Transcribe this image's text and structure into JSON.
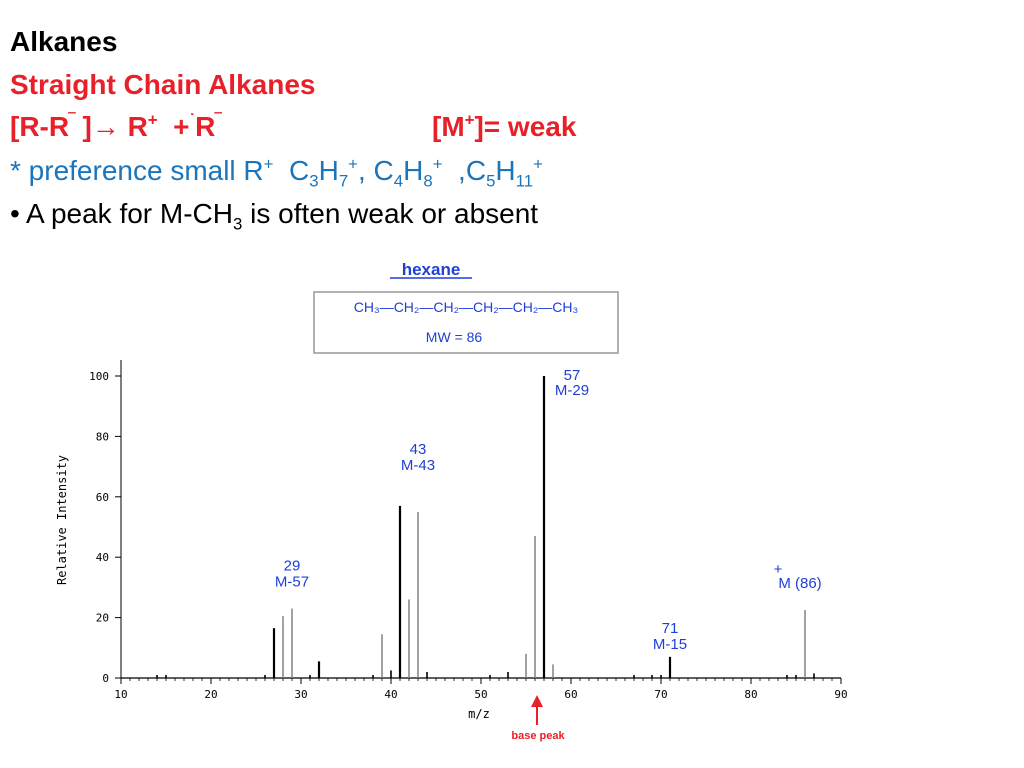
{
  "slide": {
    "title": "Alkanes",
    "subtitle": "Straight Chain Alkanes",
    "equation": {
      "part1": "[R-R",
      "sup1": "‾",
      "part2": " ]→ R",
      "sup2": "+",
      "part3": "  +",
      "sup3": "˙",
      "part4": "R",
      "sup4": "‾"
    },
    "molecular_ion": {
      "part1": "[M",
      "sup": "+",
      "part2": "]= weak"
    },
    "preference": {
      "prefix": "* preference small R",
      "sup_r": "+",
      "c3": "  C",
      "c3_sub": "3",
      "h7": "H",
      "h7_sub": "7",
      "c3_sup": "+",
      "c4": ", C",
      "c4_sub": "4",
      "h8": "H",
      "h8_sub": "8",
      "c4_sup": "+",
      "c5": "  ,C",
      "c5_sub": "5",
      "h11": "H",
      "h11_sub": "11",
      "c5_sup": "+"
    },
    "bullet": {
      "prefix": "• A peak for M-CH",
      "sub": "3",
      "suffix": " is often weak or absent"
    }
  },
  "spectrum_header": {
    "compound": "hexane",
    "formula": "CH₃—CH₂—CH₂—CH₂—CH₂—CH₃",
    "mw": "MW = 86"
  },
  "chart_data": {
    "type": "bar",
    "xlabel": "m/z",
    "ylabel": "Relative Intensity",
    "xlim": [
      10,
      90
    ],
    "ylim": [
      0,
      100
    ],
    "x_ticks": [
      10,
      20,
      30,
      40,
      50,
      60,
      70,
      80,
      90
    ],
    "y_ticks": [
      0,
      20,
      40,
      60,
      80,
      100
    ],
    "grid": false,
    "peaks": [
      {
        "mz": 14,
        "intensity": 1
      },
      {
        "mz": 15,
        "intensity": 1
      },
      {
        "mz": 26,
        "intensity": 1
      },
      {
        "mz": 27,
        "intensity": 16.5
      },
      {
        "mz": 28,
        "intensity": 20.5
      },
      {
        "mz": 29,
        "intensity": 23
      },
      {
        "mz": 31,
        "intensity": 1
      },
      {
        "mz": 32,
        "intensity": 5.5
      },
      {
        "mz": 38,
        "intensity": 1
      },
      {
        "mz": 39,
        "intensity": 14.5
      },
      {
        "mz": 40,
        "intensity": 2.5
      },
      {
        "mz": 41,
        "intensity": 57
      },
      {
        "mz": 42,
        "intensity": 26
      },
      {
        "mz": 43,
        "intensity": 55
      },
      {
        "mz": 44,
        "intensity": 2
      },
      {
        "mz": 51,
        "intensity": 1
      },
      {
        "mz": 53,
        "intensity": 2
      },
      {
        "mz": 55,
        "intensity": 8
      },
      {
        "mz": 56,
        "intensity": 47
      },
      {
        "mz": 57,
        "intensity": 100
      },
      {
        "mz": 58,
        "intensity": 4.5
      },
      {
        "mz": 67,
        "intensity": 1
      },
      {
        "mz": 69,
        "intensity": 1
      },
      {
        "mz": 70,
        "intensity": 1
      },
      {
        "mz": 71,
        "intensity": 7
      },
      {
        "mz": 84,
        "intensity": 1
      },
      {
        "mz": 85,
        "intensity": 1
      },
      {
        "mz": 86,
        "intensity": 22.5
      },
      {
        "mz": 87,
        "intensity": 1.5
      }
    ],
    "annotations": [
      {
        "mz": 29,
        "intensity": 23,
        "lines": [
          "29",
          "M-57"
        ]
      },
      {
        "mz": 43,
        "intensity": 55,
        "lines": [
          "43",
          "M-43"
        ]
      },
      {
        "mz": 57,
        "intensity": 100,
        "lines": [
          "57",
          "M-29"
        ]
      },
      {
        "mz": 71,
        "intensity": 7,
        "lines": [
          "71",
          "M-15"
        ]
      },
      {
        "mz": 86,
        "intensity": 22.5,
        "lines": [
          "+",
          "M (86)"
        ]
      }
    ],
    "base_peak_label": "base peak",
    "colors": {
      "axis": "#000000",
      "annotation": "#1f3fd8",
      "arrow": "#e8202a",
      "peak": "#000000",
      "minor_peak": "#8a8a8a"
    }
  }
}
